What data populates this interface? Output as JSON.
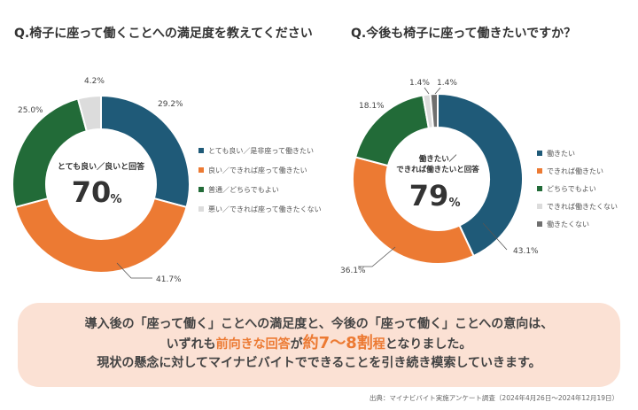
{
  "charts": [
    {
      "title": "Q.椅子に座って働くことへの満足度を教えてください",
      "center_label": "とても良い／良いと回答",
      "center_value": "70",
      "center_unit": "%"
    },
    {
      "title": "Q.今後も椅子に座って働きたいですか？",
      "center_label_line1": "働きたい／",
      "center_label_line2": "できれば働きたいと回答",
      "center_value": "79",
      "center_unit": "%"
    }
  ],
  "chart_data": [
    {
      "type": "pie",
      "title": "Q.椅子に座って働くことへの満足度を教えてください",
      "slices": [
        {
          "label": "とても良い／是非座って働きたい",
          "value": 29.2,
          "value_label": "29.2%",
          "color": "#1f5a78"
        },
        {
          "label": "良い／できれば座って働きたい",
          "value": 41.7,
          "value_label": "41.7%",
          "color": "#ec7a33"
        },
        {
          "label": "普通／どちらでもよい",
          "value": 25.0,
          "value_label": "25.0%",
          "color": "#226b38"
        },
        {
          "label": "悪い／できれば座って働きたくない",
          "value": 4.2,
          "value_label": "4.2%",
          "color": "#dcdcdc"
        }
      ]
    },
    {
      "type": "pie",
      "title": "Q.今後も椅子に座って働きたいですか？",
      "slices": [
        {
          "label": "働きたい",
          "value": 43.1,
          "value_label": "43.1%",
          "color": "#1f5a78"
        },
        {
          "label": "できれば働きたい",
          "value": 36.1,
          "value_label": "36.1%",
          "color": "#ec7a33"
        },
        {
          "label": "どちらでもよい",
          "value": 18.1,
          "value_label": "18.1%",
          "color": "#226b38"
        },
        {
          "label": "できれば働きたくない",
          "value": 1.4,
          "value_label": "1.4%",
          "color": "#dcdcdc"
        },
        {
          "label": "働きたくない",
          "value": 1.4,
          "value_label": "1.4%",
          "color": "#6f6f6f"
        }
      ]
    }
  ],
  "summary": {
    "line1": "導入後の「座って働く」ことへの満足度と、今後の「座って働く」ことへの意向は、",
    "line2_pre": "いずれも",
    "line2_hl1": "前向きな回答",
    "line2_mid": "が",
    "line2_hl2": "約7～8割",
    "line2_hl3": "程",
    "line2_post": "となりました。",
    "line3": "現状の懸念に対してマイナビバイトでできることを引き続き模索していきます。"
  },
  "source": "出典：マイナビバイト実施アンケート調査（2024年4月26日～2024年12月19日）"
}
